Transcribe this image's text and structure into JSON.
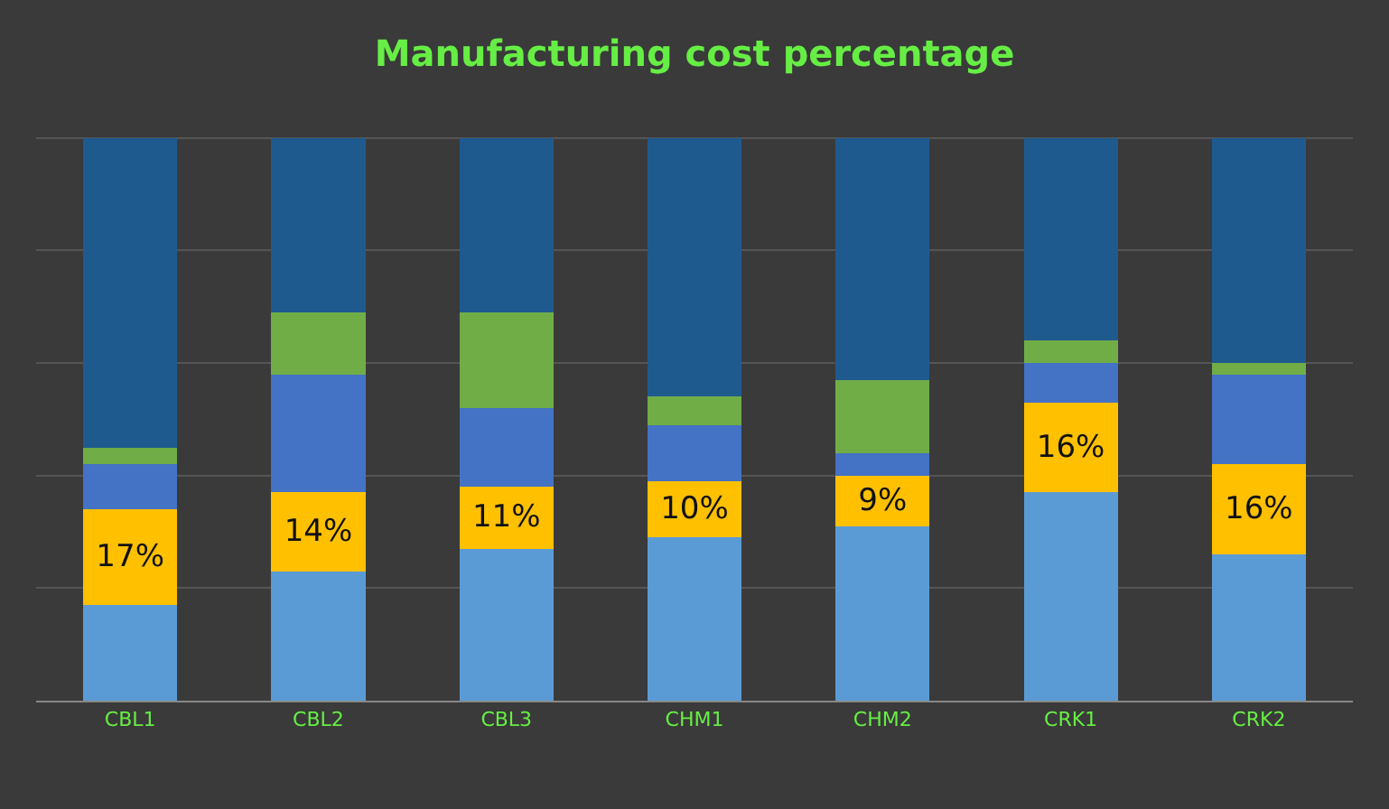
{
  "chart_data": {
    "type": "bar",
    "title": "Manufacturing cost percentage",
    "stacked": true,
    "grid": "y",
    "tick_labels": "x",
    "categories": [
      "CBL1",
      "CBL2",
      "CBL3",
      "CHM1",
      "CHM2",
      "CRK1",
      "CRK2"
    ],
    "series": [
      {
        "color": "#5b9bd5",
        "values": [
          17,
          23,
          27,
          29,
          31,
          37,
          26
        ]
      },
      {
        "color": "#ffc000",
        "values": [
          17,
          14,
          11,
          10,
          9,
          16,
          16
        ],
        "value_labels": [
          "17%",
          "14%",
          "11%",
          "10%",
          "9%",
          "16%",
          "16%"
        ]
      },
      {
        "color": "#4472c4",
        "values": [
          8,
          21,
          14,
          10,
          4,
          7,
          16
        ]
      },
      {
        "color": "#70ad47",
        "values": [
          3,
          11,
          17,
          5,
          13,
          4,
          2
        ]
      },
      {
        "color": "#1f5a8f",
        "values": [
          55,
          31,
          31,
          46,
          43,
          36,
          40
        ]
      }
    ]
  }
}
